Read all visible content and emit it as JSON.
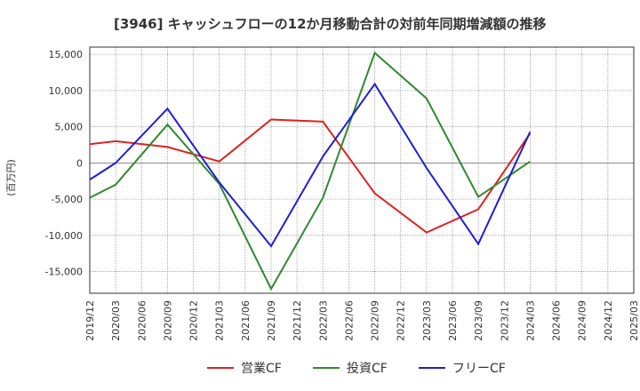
{
  "chart_data": {
    "type": "line",
    "title": "[3946]  キャッシュフローの12か月移動合計の対前年同期増減額の推移",
    "ylabel": "(百万円)",
    "xlabel": "",
    "ylim": [
      -18000,
      16000
    ],
    "yticks": [
      15000,
      10000,
      5000,
      0,
      -5000,
      -10000,
      -15000
    ],
    "ytick_labels": [
      "15,000",
      "10,000",
      "5,000",
      "0",
      "-5,000",
      "-10,000",
      "-15,000"
    ],
    "x_categories": [
      "2019/12",
      "2020/03",
      "2020/06",
      "2020/09",
      "2020/12",
      "2021/03",
      "2021/06",
      "2021/09",
      "2021/12",
      "2022/03",
      "2022/06",
      "2022/09",
      "2022/12",
      "2023/03",
      "2023/06",
      "2023/09",
      "2023/12",
      "2024/03",
      "2024/06",
      "2024/09",
      "2024/12",
      "2025/03"
    ],
    "grid": true,
    "legend_position": "bottom",
    "series": [
      {
        "name": "営業CF",
        "color": "#dd2222",
        "x": [
          "2019/12",
          "2020/03",
          "2020/09",
          "2021/03",
          "2021/09",
          "2022/03",
          "2022/09",
          "2023/03",
          "2023/09",
          "2024/03"
        ],
        "values": [
          2600,
          3000,
          2200,
          200,
          6000,
          5700,
          -4200,
          -9600,
          -6400,
          4100
        ]
      },
      {
        "name": "投資CF",
        "color": "#338833",
        "x": [
          "2019/12",
          "2020/03",
          "2020/09",
          "2021/03",
          "2021/09",
          "2022/03",
          "2022/09",
          "2023/03",
          "2023/09",
          "2024/03"
        ],
        "values": [
          -4800,
          -3000,
          5300,
          -2900,
          -17400,
          -4800,
          15200,
          8900,
          -4700,
          200
        ]
      },
      {
        "name": "フリーCF",
        "color": "#1f1fd2",
        "x": [
          "2019/12",
          "2020/03",
          "2020/09",
          "2021/03",
          "2021/09",
          "2022/03",
          "2022/09",
          "2023/03",
          "2023/09",
          "2024/03"
        ],
        "values": [
          -2300,
          0,
          7500,
          -2700,
          -11500,
          900,
          10900,
          -700,
          -11200,
          4300
        ]
      }
    ]
  }
}
